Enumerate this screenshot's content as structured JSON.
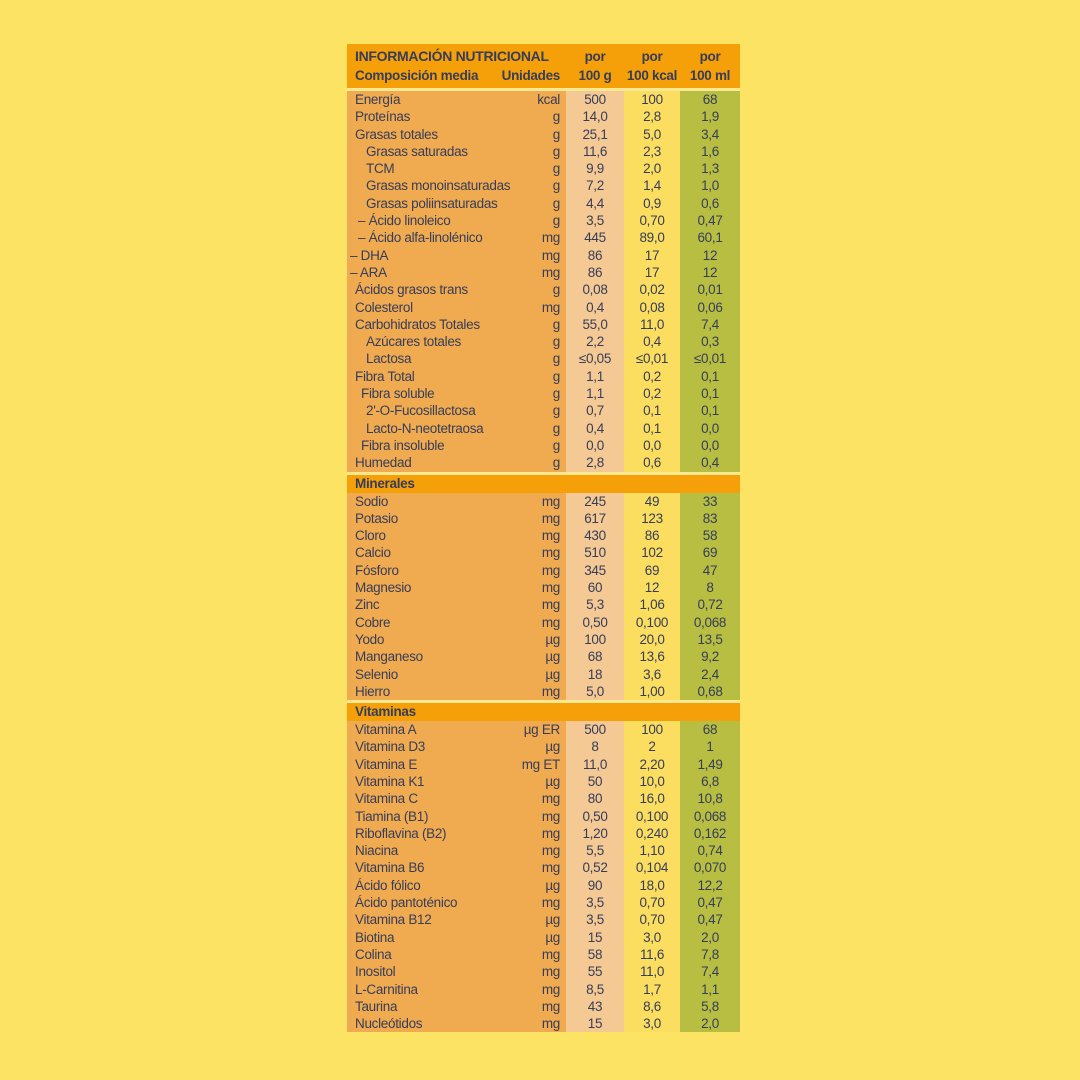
{
  "table": {
    "colors": {
      "background": "#FCE364",
      "header_orange": "#F5A009",
      "body_orange": "#F0AA50",
      "col_100g": "#F4C993",
      "col_100kcal": "#FBDE5F",
      "col_100ml": "#B7BE41",
      "separator": "#FBE992",
      "text_navy": "#363D5A"
    },
    "header": {
      "title": "INFORMACIÓN NUTRICIONAL",
      "subtitle": "Composición media",
      "units_label": "Unidades",
      "por": "por",
      "columns": [
        "100 g",
        "100 kcal",
        "100 ml"
      ]
    },
    "sections": [
      {
        "name": "",
        "rows": [
          [
            "Energía",
            "kcal",
            "500",
            "100",
            "68",
            0
          ],
          [
            "Proteínas",
            "g",
            "14,0",
            "2,8",
            "1,9",
            0
          ],
          [
            "Grasas totales",
            "g",
            "25,1",
            "5,0",
            "3,4",
            0
          ],
          [
            "Grasas saturadas",
            "g",
            "11,6",
            "2,3",
            "1,6",
            2
          ],
          [
            "TCM",
            "g",
            "9,9",
            "2,0",
            "1,3",
            2
          ],
          [
            "Grasas monoinsaturadas",
            "g",
            "7,2",
            "1,4",
            "1,0",
            2
          ],
          [
            "Grasas poliinsaturadas",
            "g",
            "4,4",
            "0,9",
            "0,6",
            2
          ],
          [
            "– Ácido linoleico",
            "g",
            "3,5",
            "0,70",
            "0,47",
            3
          ],
          [
            "– Ácido alfa-linolénico",
            "mg",
            "445",
            "89,0",
            "60,1",
            3
          ],
          [
            "– DHA",
            "mg",
            "86",
            "17",
            "12",
            4
          ],
          [
            "– ARA",
            "mg",
            "86",
            "17",
            "12",
            4
          ],
          [
            "Ácidos grasos trans",
            "g",
            "0,08",
            "0,02",
            "0,01",
            0
          ],
          [
            "Colesterol",
            "mg",
            "0,4",
            "0,08",
            "0,06",
            0
          ],
          [
            "Carbohidratos Totales",
            "g",
            "55,0",
            "11,0",
            "7,4",
            0
          ],
          [
            "Azúcares totales",
            "g",
            "2,2",
            "0,4",
            "0,3",
            2
          ],
          [
            "Lactosa",
            "g",
            "≤0,05",
            "≤0,01",
            "≤0,01",
            2
          ],
          [
            "Fibra Total",
            "g",
            "1,1",
            "0,2",
            "0,1",
            0
          ],
          [
            "Fibra soluble",
            "g",
            "1,1",
            "0,2",
            "0,1",
            1
          ],
          [
            "2'-O-Fucosillactosa",
            "g",
            "0,7",
            "0,1",
            "0,1",
            2
          ],
          [
            "Lacto-N-neotetraosa",
            "g",
            "0,4",
            "0,1",
            "0,0",
            2
          ],
          [
            "Fibra insoluble",
            "g",
            "0,0",
            "0,0",
            "0,0",
            1
          ],
          [
            "Humedad",
            "g",
            "2,8",
            "0,6",
            "0,4",
            0
          ]
        ]
      },
      {
        "name": "Minerales",
        "rows": [
          [
            "Sodio",
            "mg",
            "245",
            "49",
            "33",
            0
          ],
          [
            "Potasio",
            "mg",
            "617",
            "123",
            "83",
            0
          ],
          [
            "Cloro",
            "mg",
            "430",
            "86",
            "58",
            0
          ],
          [
            "Calcio",
            "mg",
            "510",
            "102",
            "69",
            0
          ],
          [
            "Fósforo",
            "mg",
            "345",
            "69",
            "47",
            0
          ],
          [
            "Magnesio",
            "mg",
            "60",
            "12",
            "8",
            0
          ],
          [
            "Zinc",
            "mg",
            "5,3",
            "1,06",
            "0,72",
            0
          ],
          [
            "Cobre",
            "mg",
            "0,50",
            "0,100",
            "0,068",
            0
          ],
          [
            "Yodo",
            "µg",
            "100",
            "20,0",
            "13,5",
            0
          ],
          [
            "Manganeso",
            "µg",
            "68",
            "13,6",
            "9,2",
            0
          ],
          [
            "Selenio",
            "µg",
            "18",
            "3,6",
            "2,4",
            0
          ],
          [
            "Hierro",
            "mg",
            "5,0",
            "1,00",
            "0,68",
            0
          ]
        ]
      },
      {
        "name": "Vitaminas",
        "rows": [
          [
            "Vitamina A",
            "µg ER",
            "500",
            "100",
            "68",
            0
          ],
          [
            "Vitamina D3",
            "µg",
            "8",
            "2",
            "1",
            0
          ],
          [
            "Vitamina E",
            "mg ET",
            "11,0",
            "2,20",
            "1,49",
            0
          ],
          [
            "Vitamina K1",
            "µg",
            "50",
            "10,0",
            "6,8",
            0
          ],
          [
            "Vitamina C",
            "mg",
            "80",
            "16,0",
            "10,8",
            0
          ],
          [
            "Tiamina (B1)",
            "mg",
            "0,50",
            "0,100",
            "0,068",
            0
          ],
          [
            "Riboflavina (B2)",
            "mg",
            "1,20",
            "0,240",
            "0,162",
            0
          ],
          [
            "Niacina",
            "mg",
            "5,5",
            "1,10",
            "0,74",
            0
          ],
          [
            "Vitamina B6",
            "mg",
            "0,52",
            "0,104",
            "0,070",
            0
          ],
          [
            "Ácido fólico",
            "µg",
            "90",
            "18,0",
            "12,2",
            0
          ],
          [
            "Ácido pantoténico",
            "mg",
            "3,5",
            "0,70",
            "0,47",
            0
          ],
          [
            "Vitamina B12",
            "µg",
            "3,5",
            "0,70",
            "0,47",
            0
          ],
          [
            "Biotina",
            "µg",
            "15",
            "3,0",
            "2,0",
            0
          ],
          [
            "Colina",
            "mg",
            "58",
            "11,6",
            "7,8",
            0
          ],
          [
            "Inositol",
            "mg",
            "55",
            "11,0",
            "7,4",
            0
          ],
          [
            "L-Carnitina",
            "mg",
            "8,5",
            "1,7",
            "1,1",
            0
          ],
          [
            "Taurina",
            "mg",
            "43",
            "8,6",
            "5,8",
            0
          ],
          [
            "Nucleótidos",
            "mg",
            "15",
            "3,0",
            "2,0",
            0
          ]
        ]
      }
    ]
  }
}
